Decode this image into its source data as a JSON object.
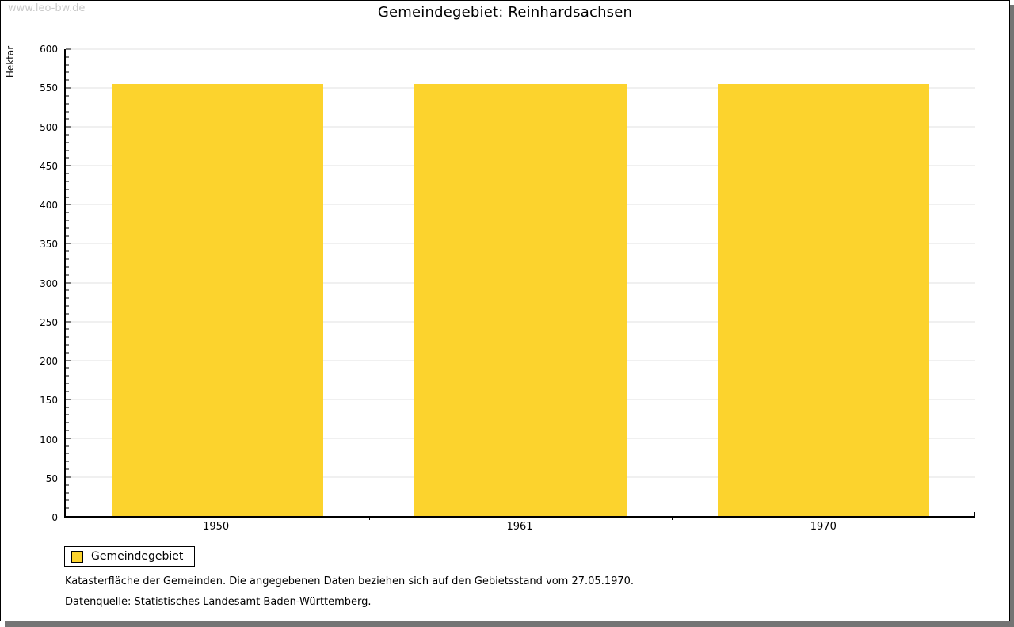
{
  "watermark": "www.leo-bw.de",
  "header": {
    "title": "Gemeindegebiet: Reinhardsachsen"
  },
  "chart_data": {
    "type": "bar",
    "title": "Gemeindegebiet: Reinhardsachsen",
    "categories": [
      "1950",
      "1961",
      "1970"
    ],
    "series": [
      {
        "name": "Gemeindegebiet",
        "values": [
          555,
          555,
          555
        ],
        "color": "#FCD32D"
      }
    ],
    "xlabel": "",
    "ylabel": "Hektar",
    "ylim": [
      0,
      600
    ],
    "ytick_major": 50,
    "ytick_minor": 10,
    "grid": true,
    "legend_position": "bottom-left",
    "bar_width_fraction": 0.233
  },
  "legend": {
    "items": [
      {
        "label": "Gemeindegebiet",
        "color": "#FCD32D"
      }
    ]
  },
  "footer": {
    "line1": "Katasterfläche der Gemeinden. Die angegebenen Daten beziehen sich auf den Gebietsstand vom 27.05.1970.",
    "line2": "Datenquelle: Statistisches Landesamt Baden-Württemberg."
  },
  "colors": {
    "bar": "#FCD32D",
    "gridline": "#E2E2E2",
    "axis": "#000000",
    "shadow": "#747474",
    "watermark": "#C9C9C9",
    "background": "#FFFFFF"
  }
}
